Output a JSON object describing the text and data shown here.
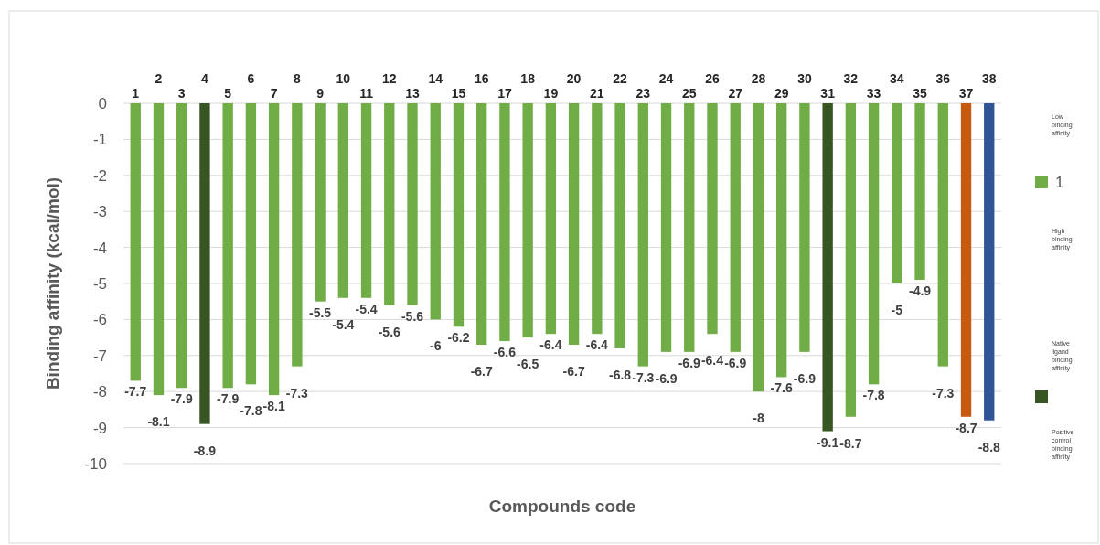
{
  "chart_data": {
    "type": "bar",
    "xlabel": "Compounds code",
    "ylabel": "Binding affinity (kcal/mol)",
    "categories": [
      "1",
      "2",
      "3",
      "4",
      "5",
      "6",
      "7",
      "8",
      "9",
      "10",
      "11",
      "12",
      "13",
      "14",
      "15",
      "16",
      "17",
      "18",
      "19",
      "20",
      "21",
      "22",
      "23",
      "24",
      "25",
      "26",
      "27",
      "28",
      "29",
      "30",
      "31",
      "32",
      "33",
      "34",
      "35",
      "36",
      "37",
      "38"
    ],
    "series": [
      {
        "name": "1",
        "color": "#70ad47",
        "values": [
          -7.7,
          -8.1,
          -7.9,
          -8.9,
          -7.9,
          -7.8,
          -8.1,
          -7.3,
          -5.5,
          -5.4,
          -5.4,
          -5.6,
          -5.6,
          -6,
          -6.2,
          -6.7,
          -6.6,
          -6.5,
          -6.4,
          -6.7,
          -6.4,
          -6.8,
          -7.3,
          -6.9,
          -6.9,
          -6.4,
          -6.9,
          -8,
          -7.6,
          -6.9,
          -9.1,
          -8.7,
          -7.8,
          -5,
          -4.9,
          -7.3,
          -8.7,
          -8.8
        ],
        "colors": [
          "#70ad47",
          "#70ad47",
          "#70ad47",
          "#375623",
          "#70ad47",
          "#70ad47",
          "#70ad47",
          "#70ad47",
          "#70ad47",
          "#70ad47",
          "#70ad47",
          "#70ad47",
          "#70ad47",
          "#70ad47",
          "#70ad47",
          "#70ad47",
          "#70ad47",
          "#70ad47",
          "#70ad47",
          "#70ad47",
          "#70ad47",
          "#70ad47",
          "#70ad47",
          "#70ad47",
          "#70ad47",
          "#70ad47",
          "#70ad47",
          "#70ad47",
          "#70ad47",
          "#70ad47",
          "#375623",
          "#70ad47",
          "#70ad47",
          "#70ad47",
          "#70ad47",
          "#70ad47",
          "#c55a11",
          "#2f5597"
        ]
      }
    ],
    "ylim": [
      -10,
      0
    ],
    "yticks": [
      0,
      -1,
      -2,
      -3,
      -4,
      -5,
      -6,
      -7,
      -8,
      -9,
      -10
    ],
    "grid": "y",
    "data_labels": true,
    "legend": "right",
    "annotations": [
      "Low binding affinity",
      "High binding affinity",
      "Native ligand binding affinity",
      "Positive control binding affinity"
    ]
  }
}
